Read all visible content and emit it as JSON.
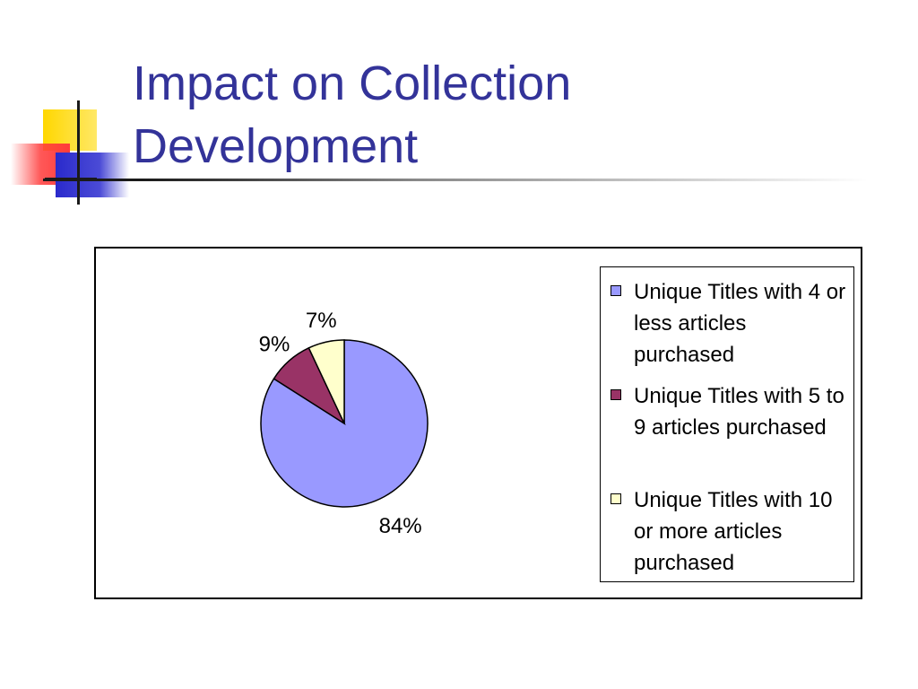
{
  "slide": {
    "title_line1": "Impact on Collection",
    "title_line2": "Development"
  },
  "colors": {
    "title": "#333399",
    "logo_yellow": "#FFCC00",
    "logo_red": "#FF3333",
    "logo_blue": "#3333CC"
  },
  "chart_data": {
    "type": "pie",
    "title": "",
    "categories": [
      "Unique Titles with 4 or less articles purchased",
      "Unique Titles with 5 to 9 articles purchased",
      "Unique Titles with 10 or more articles purchased"
    ],
    "values": [
      84,
      9,
      7
    ],
    "value_labels": [
      "84%",
      "9%",
      "7%"
    ],
    "colors": [
      "#9999FF",
      "#993366",
      "#FFFFCC"
    ],
    "legend_position": "right"
  }
}
